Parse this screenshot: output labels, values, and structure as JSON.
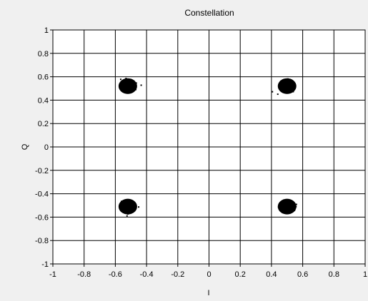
{
  "chart_data": {
    "type": "scatter",
    "title": "Constellation",
    "xlabel": "I",
    "ylabel": "Q",
    "xlim": [
      -1,
      1
    ],
    "ylim": [
      -1,
      1
    ],
    "xticks": [
      "-1",
      "-0.8",
      "-0.6",
      "-0.4",
      "-0.2",
      "0",
      "0.2",
      "0.4",
      "0.6",
      "0.8",
      "1"
    ],
    "yticks": [
      "1",
      "0.8",
      "0.6",
      "0.4",
      "0.2",
      "0",
      "-0.2",
      "-0.4",
      "-0.6",
      "-0.8",
      "-1"
    ],
    "grid": true,
    "point_color": "#000000",
    "plot_background": "#ffffff",
    "clusters": [
      {
        "x": -0.52,
        "y": 0.52
      },
      {
        "x": 0.5,
        "y": 0.52
      },
      {
        "x": -0.52,
        "y": -0.51
      },
      {
        "x": 0.5,
        "y": -0.51
      }
    ],
    "cluster_spread": 0.022
  }
}
